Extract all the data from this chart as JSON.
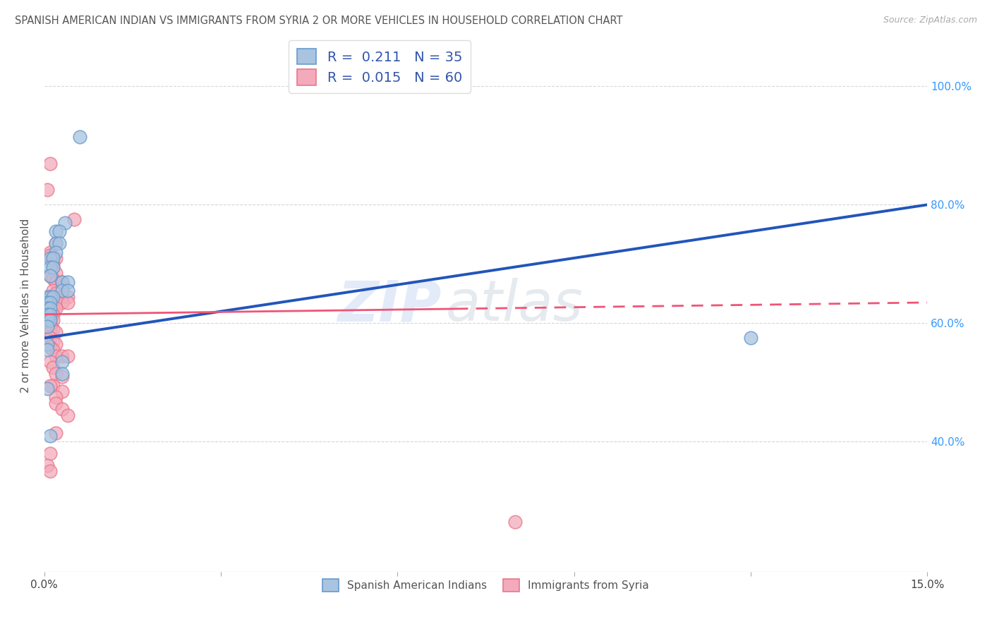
{
  "title": "SPANISH AMERICAN INDIAN VS IMMIGRANTS FROM SYRIA 2 OR MORE VEHICLES IN HOUSEHOLD CORRELATION CHART",
  "source": "Source: ZipAtlas.com",
  "ylabel": "2 or more Vehicles in Household",
  "ytick_labels": [
    "100.0%",
    "80.0%",
    "60.0%",
    "40.0%"
  ],
  "ytick_positions": [
    1.0,
    0.8,
    0.6,
    0.4
  ],
  "xlim": [
    0.0,
    0.15
  ],
  "ylim": [
    0.18,
    1.08
  ],
  "blue_color": "#A8C4E0",
  "blue_edge": "#6699CC",
  "pink_color": "#F4AABB",
  "pink_edge": "#E8778A",
  "line_blue": "#2255BB",
  "line_pink": "#EE5577",
  "blue_scatter": [
    [
      0.006,
      0.915
    ],
    [
      0.0035,
      0.77
    ],
    [
      0.002,
      0.755
    ],
    [
      0.0025,
      0.755
    ],
    [
      0.002,
      0.735
    ],
    [
      0.0025,
      0.735
    ],
    [
      0.002,
      0.72
    ],
    [
      0.001,
      0.71
    ],
    [
      0.0015,
      0.71
    ],
    [
      0.001,
      0.695
    ],
    [
      0.0015,
      0.695
    ],
    [
      0.001,
      0.68
    ],
    [
      0.003,
      0.67
    ],
    [
      0.004,
      0.67
    ],
    [
      0.003,
      0.655
    ],
    [
      0.004,
      0.655
    ],
    [
      0.0005,
      0.645
    ],
    [
      0.001,
      0.645
    ],
    [
      0.0015,
      0.645
    ],
    [
      0.0005,
      0.635
    ],
    [
      0.001,
      0.635
    ],
    [
      0.0005,
      0.625
    ],
    [
      0.001,
      0.625
    ],
    [
      0.0005,
      0.615
    ],
    [
      0.001,
      0.615
    ],
    [
      0.0005,
      0.605
    ],
    [
      0.001,
      0.605
    ],
    [
      0.0005,
      0.595
    ],
    [
      0.0005,
      0.565
    ],
    [
      0.0005,
      0.555
    ],
    [
      0.12,
      0.575
    ],
    [
      0.001,
      0.41
    ],
    [
      0.003,
      0.535
    ],
    [
      0.003,
      0.515
    ],
    [
      0.0005,
      0.49
    ]
  ],
  "pink_scatter": [
    [
      0.001,
      0.87
    ],
    [
      0.0005,
      0.825
    ],
    [
      0.005,
      0.775
    ],
    [
      0.002,
      0.735
    ],
    [
      0.001,
      0.72
    ],
    [
      0.001,
      0.715
    ],
    [
      0.002,
      0.71
    ],
    [
      0.0015,
      0.7
    ],
    [
      0.0015,
      0.695
    ],
    [
      0.002,
      0.685
    ],
    [
      0.001,
      0.68
    ],
    [
      0.0015,
      0.675
    ],
    [
      0.002,
      0.67
    ],
    [
      0.003,
      0.67
    ],
    [
      0.003,
      0.66
    ],
    [
      0.0015,
      0.655
    ],
    [
      0.002,
      0.65
    ],
    [
      0.003,
      0.645
    ],
    [
      0.004,
      0.645
    ],
    [
      0.001,
      0.64
    ],
    [
      0.0015,
      0.64
    ],
    [
      0.002,
      0.635
    ],
    [
      0.003,
      0.635
    ],
    [
      0.004,
      0.635
    ],
    [
      0.001,
      0.63
    ],
    [
      0.0015,
      0.625
    ],
    [
      0.002,
      0.625
    ],
    [
      0.001,
      0.62
    ],
    [
      0.0015,
      0.615
    ],
    [
      0.001,
      0.61
    ],
    [
      0.0015,
      0.605
    ],
    [
      0.001,
      0.6
    ],
    [
      0.001,
      0.595
    ],
    [
      0.0015,
      0.59
    ],
    [
      0.001,
      0.585
    ],
    [
      0.002,
      0.585
    ],
    [
      0.001,
      0.575
    ],
    [
      0.0015,
      0.57
    ],
    [
      0.002,
      0.565
    ],
    [
      0.001,
      0.56
    ],
    [
      0.0015,
      0.555
    ],
    [
      0.002,
      0.545
    ],
    [
      0.003,
      0.545
    ],
    [
      0.004,
      0.545
    ],
    [
      0.001,
      0.535
    ],
    [
      0.0015,
      0.525
    ],
    [
      0.002,
      0.515
    ],
    [
      0.003,
      0.51
    ],
    [
      0.0015,
      0.495
    ],
    [
      0.003,
      0.485
    ],
    [
      0.002,
      0.475
    ],
    [
      0.002,
      0.465
    ],
    [
      0.003,
      0.455
    ],
    [
      0.004,
      0.445
    ],
    [
      0.002,
      0.415
    ],
    [
      0.001,
      0.38
    ],
    [
      0.0005,
      0.36
    ],
    [
      0.001,
      0.35
    ],
    [
      0.08,
      0.265
    ],
    [
      0.001,
      0.495
    ]
  ],
  "blue_trendline_x": [
    0.0,
    0.15
  ],
  "blue_trendline_y": [
    0.575,
    0.8
  ],
  "pink_trendline_x": [
    0.0,
    0.07,
    0.15
  ],
  "pink_trendline_y": [
    0.615,
    0.63,
    0.635
  ],
  "pink_trendline_solid_end": 0.07
}
